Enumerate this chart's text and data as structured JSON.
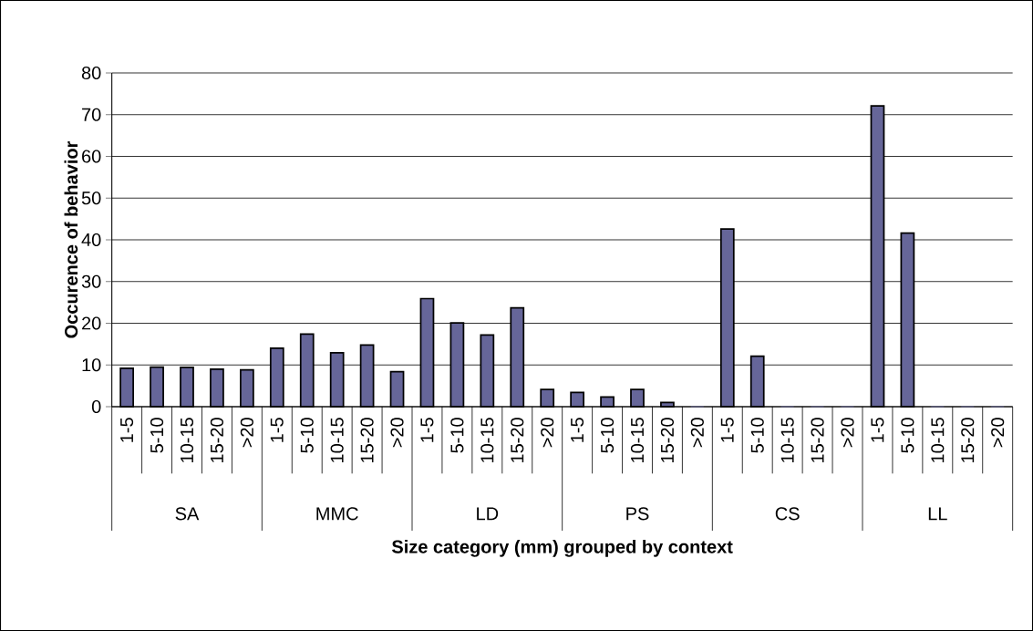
{
  "chart_data": {
    "type": "bar",
    "xlabel": "Size category (mm) grouped by context",
    "ylabel": "Occurence of behavior",
    "categories": [
      "1-5",
      "5-10",
      "10-15",
      "15-20",
      ">20",
      "1-5",
      "5-10",
      "10-15",
      "15-20",
      ">20",
      "1-5",
      "5-10",
      "10-15",
      "15-20",
      ">20",
      "1-5",
      "5-10",
      "10-15",
      "15-20",
      ">20",
      "1-5",
      "5-10",
      "10-15",
      "15-20",
      ">20",
      "1-5",
      "5-10",
      "10-15",
      "15-20",
      ">20"
    ],
    "values": [
      9.2,
      9.5,
      9.4,
      9.0,
      8.8,
      14.0,
      17.4,
      12.9,
      14.8,
      8.4,
      25.9,
      20.1,
      17.2,
      23.7,
      4.1,
      3.4,
      2.3,
      4.1,
      1.0,
      0,
      42.6,
      12.1,
      0,
      0,
      0,
      72.1,
      41.6,
      0,
      0,
      0
    ],
    "color": "#666699",
    "ylim": [
      0,
      80
    ],
    "yticks": [
      0,
      10,
      20,
      30,
      40,
      50,
      60,
      70,
      80
    ],
    "grid": "y",
    "annotations": [
      "SA",
      "MMC",
      "LD",
      "PS",
      "CS",
      "LL"
    ]
  }
}
